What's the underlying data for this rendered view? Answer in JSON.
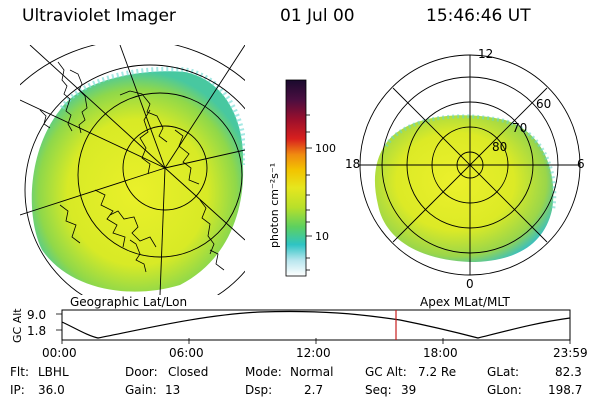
{
  "header": {
    "title": "Ultraviolet Imager",
    "date": "01 Jul 00",
    "time": "15:46:46 UT"
  },
  "left_map": {
    "caption": "Geographic Lat/Lon"
  },
  "right_map": {
    "caption": "Apex MLat/MLT",
    "mlt_labels": [
      "12",
      "18",
      "6",
      "0"
    ],
    "lat_labels": [
      "60",
      "70",
      "80"
    ]
  },
  "colorbar": {
    "unit_label": "photon cm⁻²s⁻¹",
    "ticks": [
      "100",
      "10"
    ],
    "colors": [
      "#1a0a2e",
      "#5c1040",
      "#b0102a",
      "#e8501a",
      "#f5a800",
      "#e9e21e",
      "#b7e22a",
      "#53d16a",
      "#2fc4c8",
      "#bfe8f0",
      "#ffffff"
    ]
  },
  "timeline": {
    "ylabel": "GC Alt",
    "y_ticks": [
      "9.0",
      "1.8"
    ],
    "x_ticks": [
      "00:00",
      "06:00",
      "12:00",
      "18:00",
      "23:59"
    ],
    "marker_color": "#c81e1e"
  },
  "status": {
    "row1": [
      {
        "label": "Flt:",
        "value": "LBHL"
      },
      {
        "label": "Door:",
        "value": "Closed"
      },
      {
        "label": "Mode:",
        "value": "Normal"
      },
      {
        "label": "GC Alt:",
        "value": "7.2 Re"
      },
      {
        "label": "GLat:",
        "value": "82.3"
      }
    ],
    "row2": [
      {
        "label": "IP:",
        "value": "36.0"
      },
      {
        "label": "Gain:",
        "value": "13"
      },
      {
        "label": "Dsp:",
        "value": "2.7"
      },
      {
        "label": "Seq:",
        "value": "39"
      },
      {
        "label": "GLon:",
        "value": "198.7"
      }
    ]
  }
}
